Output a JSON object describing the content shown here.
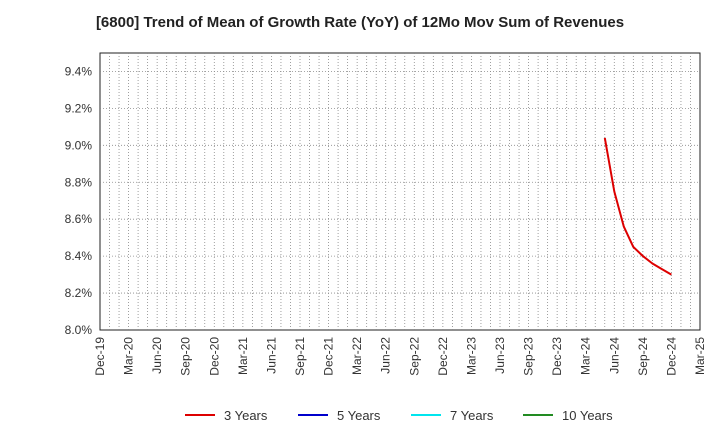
{
  "chart_data": {
    "type": "line",
    "title": "[6800]  Trend of Mean of Growth Rate (YoY) of 12Mo Mov Sum of Revenues",
    "xlabel": "",
    "ylabel": "",
    "x_ticks": [
      "Dec-19",
      "Mar-20",
      "Jun-20",
      "Sep-20",
      "Dec-20",
      "Mar-21",
      "Jun-21",
      "Sep-21",
      "Dec-21",
      "Mar-22",
      "Jun-22",
      "Sep-22",
      "Dec-22",
      "Mar-23",
      "Jun-23",
      "Sep-23",
      "Dec-23",
      "Mar-24",
      "Jun-24",
      "Sep-24",
      "Dec-24",
      "Mar-25"
    ],
    "y_ticks": [
      "8.0%",
      "8.2%",
      "8.4%",
      "8.6%",
      "8.8%",
      "9.0%",
      "9.2%",
      "9.4%"
    ],
    "ylim": [
      8.0,
      9.5
    ],
    "grid": true,
    "legend_position": "bottom",
    "series": [
      {
        "name": "3 Years",
        "color": "#dd0000",
        "points": [
          {
            "x": "May-24",
            "y": 9.04
          },
          {
            "x": "Jun-24",
            "y": 8.75
          },
          {
            "x": "Jul-24",
            "y": 8.56
          },
          {
            "x": "Aug-24",
            "y": 8.45
          },
          {
            "x": "Sep-24",
            "y": 8.4
          },
          {
            "x": "Oct-24",
            "y": 8.36
          },
          {
            "x": "Nov-24",
            "y": 8.33
          },
          {
            "x": "Dec-24",
            "y": 8.3
          }
        ]
      },
      {
        "name": "5 Years",
        "color": "#0000cc",
        "points": []
      },
      {
        "name": "7 Years",
        "color": "#00e5ee",
        "points": []
      },
      {
        "name": "10 Years",
        "color": "#228b22",
        "points": []
      }
    ]
  }
}
